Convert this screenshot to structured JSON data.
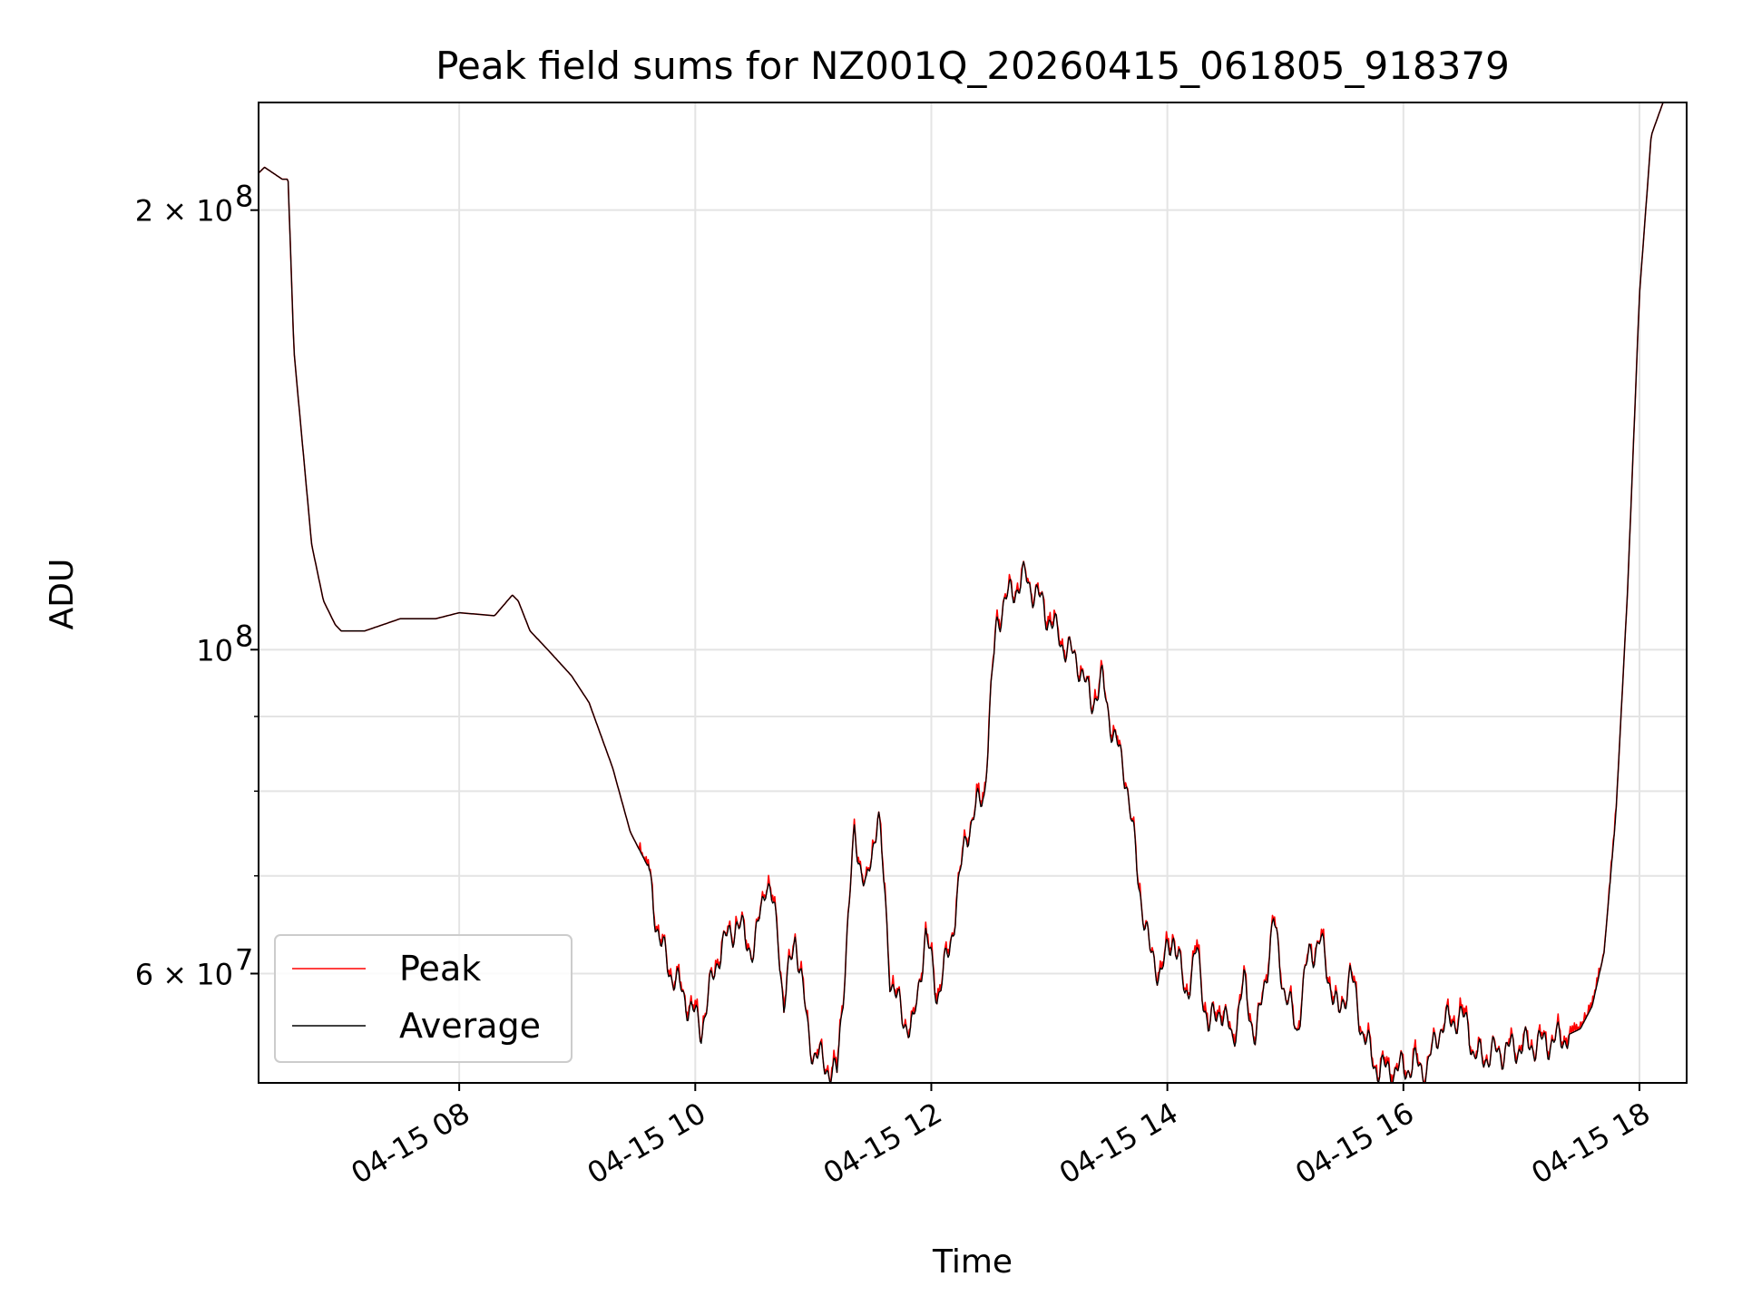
{
  "chart_data": {
    "type": "line",
    "title": "Peak field sums for NZ001Q_20260415_061805_918379",
    "xlabel": "Time",
    "ylabel": "ADU",
    "yscale": "log",
    "xlim_hours": [
      6.3,
      18.4
    ],
    "ylim": [
      50500000,
      237000000
    ],
    "grid": true,
    "legend_location": "lower-left",
    "x_ticks": [
      {
        "hour": 8,
        "label": "04-15 08"
      },
      {
        "hour": 10,
        "label": "04-15 10"
      },
      {
        "hour": 12,
        "label": "04-15 12"
      },
      {
        "hour": 14,
        "label": "04-15 14"
      },
      {
        "hour": 16,
        "label": "04-15 16"
      },
      {
        "hour": 18,
        "label": "04-15 18"
      }
    ],
    "y_ticks": [
      {
        "value": 60000000,
        "label": "6 × 10",
        "exp": "7"
      },
      {
        "value": 100000000,
        "label": "10",
        "exp": "8"
      },
      {
        "value": 200000000,
        "label": "2 × 10",
        "exp": "8"
      }
    ],
    "y_minor_ticks": [
      70000000,
      80000000,
      90000000
    ],
    "series": [
      {
        "name": "Peak",
        "color": "#ff0000",
        "noise": true,
        "x": [
          6.3,
          6.35,
          6.5,
          6.55,
          6.6,
          6.75,
          6.85,
          6.95,
          7.0,
          7.2,
          7.5,
          7.8,
          8.0,
          8.3,
          8.45,
          8.5,
          8.6,
          8.75,
          8.95,
          9.1,
          9.3,
          9.45,
          9.6,
          9.7,
          9.8,
          9.95,
          10.05,
          10.2,
          10.35,
          10.5,
          10.6,
          10.7,
          10.75,
          10.85,
          10.95,
          11.0,
          11.1,
          11.2,
          11.35,
          11.45,
          11.55,
          11.65,
          11.75,
          11.85,
          11.95,
          12.05,
          12.15,
          12.3,
          12.45,
          12.55,
          12.6,
          12.7,
          12.8,
          12.95,
          13.05,
          13.15,
          13.25,
          13.35,
          13.45,
          13.55,
          13.65,
          13.75,
          13.85,
          13.95,
          14.05,
          14.15,
          14.25,
          14.35,
          14.45,
          14.55,
          14.65,
          14.75,
          14.9,
          15.0,
          15.1,
          15.2,
          15.3,
          15.45,
          15.55,
          15.65,
          15.75,
          15.85,
          15.95,
          16.1,
          16.2,
          16.3,
          16.45,
          16.55,
          16.6,
          16.8,
          17.0,
          17.3,
          17.5,
          17.6,
          17.7,
          17.8,
          17.9,
          18.0,
          18.1,
          18.2,
          18.4
        ],
        "values": [
          212000000,
          214000000,
          210000000,
          210000000,
          160000000,
          118000000,
          108000000,
          104000000,
          103000000,
          103000000,
          105000000,
          105000000,
          106000000,
          105500000,
          109000000,
          108000000,
          103000000,
          100000000,
          96000000,
          92000000,
          83000000,
          75000000,
          71000000,
          63000000,
          60000000,
          57000000,
          55000000,
          62000000,
          65000000,
          62000000,
          70000000,
          64000000,
          57000000,
          64000000,
          55000000,
          53000000,
          52000000,
          51000000,
          75000000,
          68000000,
          78000000,
          60000000,
          56000000,
          55000000,
          64000000,
          58000000,
          62000000,
          75000000,
          80000000,
          104000000,
          107000000,
          110000000,
          112000000,
          107000000,
          103000000,
          100000000,
          98000000,
          92000000,
          95000000,
          87000000,
          82000000,
          70000000,
          62000000,
          60000000,
          64000000,
          58000000,
          62000000,
          55000000,
          57000000,
          54000000,
          59000000,
          54000000,
          65000000,
          58000000,
          55000000,
          62000000,
          63000000,
          56000000,
          60000000,
          55000000,
          52000000,
          51500000,
          51500000,
          52000000,
          51500000,
          55000000,
          56000000,
          55500000,
          52500000,
          53000000,
          53500000,
          54000000,
          55000000,
          57000000,
          62000000,
          77000000,
          110000000,
          175000000,
          225000000,
          237000000,
          237000000
        ]
      },
      {
        "name": "Average",
        "color": "#000000",
        "noise": false,
        "x": [
          6.3,
          6.35,
          6.5,
          6.55,
          6.6,
          6.75,
          6.85,
          6.95,
          7.0,
          7.2,
          7.5,
          7.8,
          8.0,
          8.3,
          8.45,
          8.5,
          8.6,
          8.75,
          8.95,
          9.1,
          9.3,
          9.45,
          9.6,
          9.7,
          9.8,
          9.95,
          10.05,
          10.2,
          10.35,
          10.5,
          10.6,
          10.7,
          10.75,
          10.85,
          10.95,
          11.0,
          11.1,
          11.2,
          11.35,
          11.45,
          11.55,
          11.65,
          11.75,
          11.85,
          11.95,
          12.05,
          12.15,
          12.3,
          12.45,
          12.55,
          12.6,
          12.7,
          12.8,
          12.95,
          13.05,
          13.15,
          13.25,
          13.35,
          13.45,
          13.55,
          13.65,
          13.75,
          13.85,
          13.95,
          14.05,
          14.15,
          14.25,
          14.35,
          14.45,
          14.55,
          14.65,
          14.75,
          14.9,
          15.0,
          15.1,
          15.2,
          15.3,
          15.45,
          15.55,
          15.65,
          15.75,
          15.85,
          15.95,
          16.1,
          16.2,
          16.3,
          16.45,
          16.55,
          16.6,
          16.8,
          17.0,
          17.3,
          17.5,
          17.6,
          17.7,
          17.8,
          17.9,
          18.0,
          18.1,
          18.2,
          18.4
        ],
        "values": [
          212000000,
          214000000,
          210000000,
          210000000,
          160000000,
          118000000,
          108000000,
          104000000,
          103000000,
          103000000,
          105000000,
          105000000,
          106000000,
          105500000,
          109000000,
          108000000,
          103000000,
          100000000,
          96000000,
          92000000,
          83000000,
          75000000,
          71000000,
          63000000,
          60000000,
          57000000,
          55000000,
          62000000,
          65000000,
          62000000,
          70000000,
          64000000,
          57000000,
          64000000,
          55000000,
          53000000,
          52000000,
          51000000,
          75000000,
          68000000,
          78000000,
          60000000,
          56000000,
          55000000,
          64000000,
          58000000,
          62000000,
          75000000,
          80000000,
          104000000,
          107000000,
          110000000,
          112000000,
          107000000,
          103000000,
          100000000,
          98000000,
          92000000,
          95000000,
          87000000,
          82000000,
          70000000,
          62000000,
          60000000,
          64000000,
          58000000,
          62000000,
          55000000,
          57000000,
          54000000,
          59000000,
          54000000,
          65000000,
          58000000,
          55000000,
          62000000,
          63000000,
          56000000,
          60000000,
          55000000,
          52000000,
          51500000,
          51500000,
          52000000,
          51500000,
          55000000,
          56000000,
          55500000,
          52500000,
          53000000,
          53500000,
          54000000,
          55000000,
          57000000,
          62000000,
          77000000,
          110000000,
          175000000,
          225000000,
          237000000,
          237000000
        ]
      }
    ]
  }
}
